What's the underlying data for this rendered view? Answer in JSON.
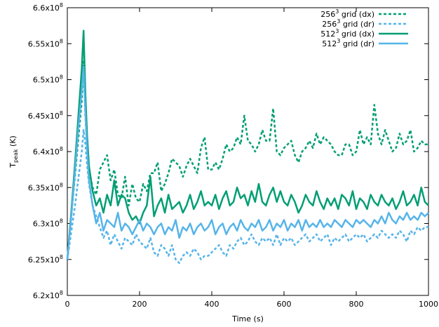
{
  "chart_data": {
    "type": "line",
    "xlabel": "Time (s)",
    "ylabel_main": "T",
    "ylabel_sub": "peak",
    "ylabel_unit": " (K)",
    "xlim": [
      0,
      1000
    ],
    "ylim": [
      620000000,
      660000000
    ],
    "x_ticks": [
      0,
      200,
      400,
      600,
      800,
      1000
    ],
    "x_tick_labels": [
      "0",
      "200",
      "400",
      "600",
      "800",
      "1000"
    ],
    "y_ticks": [
      620000000,
      625000000,
      630000000,
      635000000,
      640000000,
      645000000,
      650000000,
      655000000,
      660000000
    ],
    "y_tick_mantissas": [
      "6.2",
      "6.25",
      "6.3",
      "6.35",
      "6.4",
      "6.45",
      "6.5",
      "6.55",
      "6.6"
    ],
    "y_tick_base": "x10",
    "y_tick_exp": "8",
    "grid": false,
    "legend_position": "top-right",
    "series": [
      {
        "name_base": "256",
        "name_exp": "3",
        "name_rest": " grid (dx)",
        "color": "#009e73",
        "dash": "dashed",
        "x": [
          0,
          10,
          20,
          30,
          40,
          45,
          50,
          55,
          60,
          70,
          80,
          90,
          100,
          110,
          120,
          130,
          140,
          150,
          160,
          170,
          180,
          190,
          200,
          210,
          220,
          230,
          240,
          250,
          260,
          270,
          280,
          290,
          300,
          310,
          320,
          330,
          340,
          350,
          360,
          370,
          380,
          390,
          400,
          410,
          420,
          430,
          440,
          450,
          460,
          470,
          480,
          490,
          500,
          510,
          520,
          530,
          540,
          550,
          560,
          570,
          580,
          590,
          600,
          610,
          620,
          630,
          640,
          650,
          660,
          670,
          680,
          690,
          700,
          710,
          720,
          730,
          740,
          750,
          760,
          770,
          780,
          790,
          800,
          810,
          820,
          830,
          840,
          850,
          860,
          870,
          880,
          890,
          900,
          910,
          920,
          930,
          940,
          950,
          960,
          970,
          980,
          990,
          1000
        ],
        "values": [
          625000000,
          630500000,
          636000000,
          641500000,
          647000000,
          652500000,
          645000000,
          640500000,
          637500000,
          635000000,
          634000000,
          637500000,
          638500000,
          639500000,
          636000000,
          637500000,
          634000000,
          633500000,
          636500000,
          632500000,
          635500000,
          633500000,
          633000000,
          635500000,
          634500000,
          637000000,
          637000000,
          638500000,
          634500000,
          635500000,
          637000000,
          639000000,
          638500000,
          638000000,
          636500000,
          638000000,
          639000000,
          638000000,
          637000000,
          640500000,
          642000000,
          637500000,
          637500000,
          638500000,
          637500000,
          639000000,
          641000000,
          640000000,
          640500000,
          642000000,
          641000000,
          645000000,
          641500000,
          641000000,
          640000000,
          641000000,
          643000000,
          641500000,
          641500000,
          646000000,
          640000000,
          639500000,
          640500000,
          641000000,
          641500000,
          639500000,
          638500000,
          640000000,
          640500000,
          641500000,
          640500000,
          642500000,
          641000000,
          642000000,
          641500000,
          641000000,
          640000000,
          639500000,
          639500000,
          641000000,
          641000000,
          639500000,
          640000000,
          643000000,
          641000000,
          642000000,
          641000000,
          646500000,
          642500000,
          641000000,
          643000000,
          641500000,
          640000000,
          640500000,
          642500000,
          641000000,
          641500000,
          643000000,
          640000000,
          640500000,
          641500000,
          641000000,
          641000000
        ]
      },
      {
        "name_base": "256",
        "name_exp": "3",
        "name_rest": " grid (dr)",
        "color": "#56b4e9",
        "dash": "dashed",
        "x": [
          0,
          10,
          20,
          30,
          40,
          45,
          50,
          55,
          60,
          70,
          80,
          90,
          100,
          110,
          120,
          130,
          140,
          150,
          160,
          170,
          180,
          190,
          200,
          210,
          220,
          230,
          240,
          250,
          260,
          270,
          280,
          290,
          300,
          310,
          320,
          330,
          340,
          350,
          360,
          370,
          380,
          390,
          400,
          410,
          420,
          430,
          440,
          450,
          460,
          470,
          480,
          490,
          500,
          510,
          520,
          530,
          540,
          550,
          560,
          570,
          580,
          590,
          600,
          610,
          620,
          630,
          640,
          650,
          660,
          670,
          680,
          690,
          700,
          710,
          720,
          730,
          740,
          750,
          760,
          770,
          780,
          790,
          800,
          810,
          820,
          830,
          840,
          850,
          860,
          870,
          880,
          890,
          900,
          910,
          920,
          930,
          940,
          950,
          960,
          970,
          980,
          990,
          1000
        ],
        "values": [
          625000000,
          628500000,
          632000000,
          636000000,
          640000000,
          643000000,
          641000000,
          638000000,
          635500000,
          632500000,
          631000000,
          629500000,
          628000000,
          629000000,
          627000000,
          628500000,
          627500000,
          626500000,
          628000000,
          627500000,
          627000000,
          628500000,
          627500000,
          627000000,
          626500000,
          628000000,
          626000000,
          625500000,
          627000000,
          626500000,
          625500000,
          627000000,
          625000000,
          624500000,
          625500000,
          626000000,
          625500000,
          626500000,
          626000000,
          625000000,
          625500000,
          625500000,
          626000000,
          626500000,
          627000000,
          626000000,
          625500000,
          627000000,
          626500000,
          627500000,
          628000000,
          627000000,
          627500000,
          628500000,
          627500000,
          627000000,
          628000000,
          627500000,
          628000000,
          627000000,
          628500000,
          627000000,
          628000000,
          627500000,
          628000000,
          627000000,
          627500000,
          628000000,
          628500000,
          627500000,
          628000000,
          628500000,
          627500000,
          628000000,
          628500000,
          627000000,
          628000000,
          627500000,
          628000000,
          628500000,
          627500000,
          628000000,
          628500000,
          628000000,
          628500000,
          627500000,
          628000000,
          628500000,
          628000000,
          629000000,
          628500000,
          628000000,
          628500000,
          628000000,
          629000000,
          628500000,
          627500000,
          629000000,
          628500000,
          629500000,
          629000000,
          629500000,
          629500000
        ]
      },
      {
        "name_base": "512",
        "name_exp": "3",
        "name_rest": " grid (dx)",
        "color": "#009e73",
        "dash": "solid",
        "x": [
          0,
          10,
          20,
          30,
          40,
          45,
          50,
          55,
          60,
          70,
          80,
          90,
          100,
          110,
          120,
          130,
          140,
          150,
          160,
          170,
          180,
          190,
          200,
          210,
          220,
          230,
          240,
          250,
          260,
          270,
          280,
          290,
          300,
          310,
          320,
          330,
          340,
          350,
          360,
          370,
          380,
          390,
          400,
          410,
          420,
          430,
          440,
          450,
          460,
          470,
          480,
          490,
          500,
          510,
          520,
          530,
          540,
          550,
          560,
          570,
          580,
          590,
          600,
          610,
          620,
          630,
          640,
          650,
          660,
          670,
          680,
          690,
          700,
          710,
          720,
          730,
          740,
          750,
          760,
          770,
          780,
          790,
          800,
          810,
          820,
          830,
          840,
          850,
          860,
          870,
          880,
          890,
          900,
          910,
          920,
          930,
          940,
          950,
          960,
          970,
          980,
          990,
          1000
        ],
        "values": [
          625000000,
          631000000,
          637500000,
          644500000,
          651500000,
          656800000,
          648000000,
          642000000,
          638000000,
          634500000,
          632500000,
          633500000,
          631500000,
          634000000,
          632500000,
          636000000,
          632500000,
          634000000,
          633500000,
          631500000,
          630500000,
          631000000,
          630000000,
          631500000,
          632500000,
          636500000,
          631000000,
          632500000,
          633500000,
          631500000,
          634000000,
          632000000,
          632500000,
          633000000,
          631500000,
          632500000,
          634000000,
          632000000,
          633000000,
          634500000,
          632500000,
          633000000,
          632500000,
          634000000,
          632000000,
          633500000,
          634500000,
          632500000,
          633000000,
          635000000,
          633500000,
          634000000,
          632500000,
          634500000,
          633000000,
          635500000,
          633000000,
          632500000,
          634000000,
          635000000,
          633000000,
          634500000,
          633000000,
          632500000,
          634000000,
          633000000,
          631500000,
          632500000,
          634000000,
          633000000,
          632500000,
          634500000,
          633000000,
          632000000,
          633500000,
          632500000,
          633500000,
          632000000,
          634000000,
          633500000,
          632500000,
          634500000,
          632000000,
          633500000,
          633000000,
          632000000,
          634000000,
          633000000,
          632500000,
          634000000,
          633000000,
          632500000,
          633500000,
          632000000,
          633000000,
          634500000,
          632500000,
          633000000,
          634000000,
          632500000,
          635000000,
          633000000,
          632500000
        ]
      },
      {
        "name_base": "512",
        "name_exp": "3",
        "name_rest": " grid (dr)",
        "color": "#56b4e9",
        "dash": "solid",
        "x": [
          0,
          10,
          20,
          30,
          40,
          45,
          50,
          55,
          60,
          70,
          80,
          90,
          100,
          110,
          120,
          130,
          140,
          150,
          160,
          170,
          180,
          190,
          200,
          210,
          220,
          230,
          240,
          250,
          260,
          270,
          280,
          290,
          300,
          310,
          320,
          330,
          340,
          350,
          360,
          370,
          380,
          390,
          400,
          410,
          420,
          430,
          440,
          450,
          460,
          470,
          480,
          490,
          500,
          510,
          520,
          530,
          540,
          550,
          560,
          570,
          580,
          590,
          600,
          610,
          620,
          630,
          640,
          650,
          660,
          670,
          680,
          690,
          700,
          710,
          720,
          730,
          740,
          750,
          760,
          770,
          780,
          790,
          800,
          810,
          820,
          830,
          840,
          850,
          860,
          870,
          880,
          890,
          900,
          910,
          920,
          930,
          940,
          950,
          960,
          970,
          980,
          990,
          1000
        ],
        "values": [
          625000000,
          630500000,
          636500000,
          643000000,
          648500000,
          651800000,
          645500000,
          640000000,
          636000000,
          632500000,
          630000000,
          631500000,
          629000000,
          630500000,
          630000000,
          629500000,
          631500000,
          629000000,
          630000000,
          629500000,
          628500000,
          629500000,
          630500000,
          629000000,
          630000000,
          629500000,
          628500000,
          629500000,
          630000000,
          628500000,
          629500000,
          629000000,
          630500000,
          628000000,
          629500000,
          629000000,
          630000000,
          628500000,
          629500000,
          630000000,
          629000000,
          629500000,
          630500000,
          628500000,
          629500000,
          630000000,
          628500000,
          629500000,
          630000000,
          629000000,
          630500000,
          629500000,
          629000000,
          630000000,
          629500000,
          630500000,
          629000000,
          629500000,
          630500000,
          629000000,
          630000000,
          629500000,
          630500000,
          629000000,
          630000000,
          629500000,
          630500000,
          629000000,
          630500000,
          629500000,
          630000000,
          629500000,
          630500000,
          629500000,
          630000000,
          629500000,
          630500000,
          630000000,
          629500000,
          630500000,
          630000000,
          629500000,
          630500000,
          630000000,
          630500000,
          630000000,
          629500000,
          630500000,
          630000000,
          631000000,
          630000000,
          631500000,
          630500000,
          630000000,
          631000000,
          630500000,
          631500000,
          630500000,
          631000000,
          630500000,
          631500000,
          631000000,
          631500000
        ]
      }
    ]
  }
}
